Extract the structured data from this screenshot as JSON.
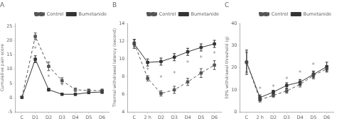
{
  "chart_data": [
    {
      "type": "line",
      "title": "A",
      "y_label": "Cumulative pain score",
      "categories": [
        "C",
        "D1",
        "D2",
        "D3",
        "D4",
        "D5",
        "D6"
      ],
      "series": [
        {
          "name": "Control",
          "color": "#555555",
          "line_style": "dashed",
          "marker": "square",
          "values": [
            0.2,
            21.5,
            11.0,
            6.0,
            2.8,
            2.5,
            2.5
          ],
          "errors": [
            0.3,
            1.2,
            1.5,
            1.0,
            0.6,
            0.5,
            0.5
          ]
        },
        {
          "name": "Bumetanide",
          "color": "#333333",
          "line_style": "solid",
          "marker": "square",
          "values": [
            0.1,
            13.5,
            2.8,
            1.2,
            1.2,
            1.8,
            2.0
          ],
          "errors": [
            0.2,
            1.2,
            0.5,
            0.3,
            0.4,
            0.4,
            0.5
          ]
        }
      ],
      "ylim": [
        -5,
        26
      ],
      "yticks": [
        -5,
        0,
        5,
        10,
        15,
        20,
        25
      ],
      "grid": false,
      "legend": "upper right",
      "annotations": [
        {
          "category": "D1",
          "y": 17.0,
          "text": "*",
          "color": "#888888"
        },
        {
          "category": "D2",
          "y": 7.0,
          "text": "*",
          "color": "#888888"
        },
        {
          "category": "D3",
          "y": 4.0,
          "text": "*",
          "color": "#888888"
        },
        {
          "category": "D4",
          "y": 2.0,
          "text": "*",
          "color": "#888888"
        }
      ]
    },
    {
      "type": "line",
      "title": "B",
      "y_label": "Thermal withdrawal latency (second)",
      "categories": [
        "C",
        "2 h",
        "D2",
        "D3",
        "D4",
        "D5",
        "D6"
      ],
      "series": [
        {
          "name": "Control",
          "color": "#555555",
          "line_style": "dashed",
          "marker": "square",
          "values": [
            11.8,
            7.8,
            6.1,
            6.5,
            7.4,
            8.4,
            9.3
          ],
          "errors": [
            0.4,
            0.3,
            0.3,
            0.4,
            0.4,
            0.5,
            0.5
          ]
        },
        {
          "name": "Bumetanide",
          "color": "#333333",
          "line_style": "solid",
          "marker": "square",
          "values": [
            11.7,
            9.6,
            9.7,
            10.2,
            10.8,
            11.3,
            11.7
          ],
          "errors": [
            0.5,
            0.4,
            0.4,
            0.4,
            0.4,
            0.4,
            0.4
          ]
        }
      ],
      "ylim": [
        4,
        14
      ],
      "yticks": [
        4,
        6,
        8,
        10,
        12,
        14
      ],
      "grid": false,
      "legend": "upper right",
      "annotations": [
        {
          "category": "2 h",
          "y": 8.7,
          "text": "*",
          "color": "#888888"
        },
        {
          "category": "D2",
          "y": 7.8,
          "text": "*",
          "color": "#888888"
        },
        {
          "category": "D3",
          "y": 8.3,
          "text": "*",
          "color": "#888888"
        },
        {
          "category": "D4",
          "y": 9.5,
          "text": "*",
          "color": "#888888"
        },
        {
          "category": "D5",
          "y": 10.0,
          "text": "*",
          "color": "#888888"
        },
        {
          "category": "D6",
          "y": 10.5,
          "text": "*",
          "color": "#888888"
        }
      ]
    },
    {
      "type": "line",
      "title": "C",
      "y_label": "50% withdrawal threshold (g)",
      "categories": [
        "C",
        "2 h",
        "D2",
        "D3",
        "D4",
        "D5",
        "D6"
      ],
      "series": [
        {
          "name": "Control",
          "color": "#555555",
          "line_style": "dashed",
          "marker": "square",
          "values": [
            22.5,
            5.5,
            7.5,
            9.5,
            12.5,
            16.5,
            19.5
          ],
          "errors": [
            4.5,
            1.0,
            0.8,
            1.0,
            1.2,
            1.5,
            1.5
          ]
        },
        {
          "name": "Bumetanide",
          "color": "#333333",
          "line_style": "solid",
          "marker": "square",
          "values": [
            22.5,
            6.5,
            9.0,
            12.0,
            13.5,
            17.0,
            20.5
          ],
          "errors": [
            5.5,
            1.2,
            0.8,
            1.2,
            1.2,
            1.5,
            2.0
          ]
        }
      ],
      "ylim": [
        0,
        40
      ],
      "yticks": [
        0,
        10,
        20,
        30,
        40
      ],
      "grid": false,
      "legend": "upper right",
      "annotations": [
        {
          "category": "2 h",
          "y": 10.0,
          "text": "*",
          "color": "#888888"
        },
        {
          "category": "D2",
          "y": 11.0,
          "text": "*",
          "color": "#888888"
        },
        {
          "category": "D3",
          "y": 14.5,
          "text": "*",
          "color": "#888888"
        },
        {
          "category": "D4",
          "y": 17.5,
          "text": "*",
          "color": "#888888"
        },
        {
          "category": "D5",
          "y": 21.0,
          "text": "*",
          "color": "#888888"
        }
      ]
    }
  ]
}
